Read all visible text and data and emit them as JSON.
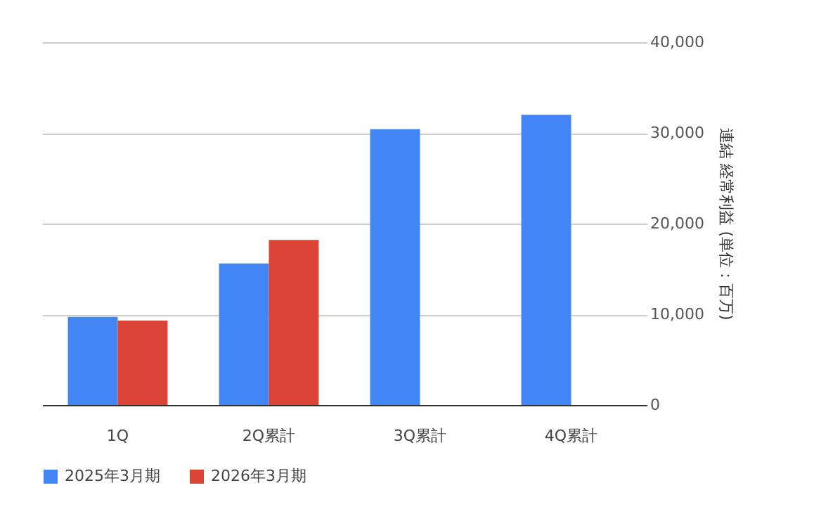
{
  "chart_data": {
    "type": "bar",
    "ylabel": "連結 経常利益 (単位：百万)",
    "categories": [
      "1Q",
      "2Q累計",
      "3Q累計",
      "4Q累計"
    ],
    "series": [
      {
        "name": "2025年3月期",
        "color": "#4285f4",
        "values": [
          9700,
          15600,
          30400,
          32000
        ]
      },
      {
        "name": "2026年3月期",
        "color": "#db4437",
        "values": [
          9300,
          18200,
          null,
          null
        ]
      }
    ],
    "ylim": [
      0,
      40000
    ],
    "yticks": [
      0,
      {
        "value": 10000,
        "label": "10,000"
      },
      {
        "value": 20000,
        "label": "20,000"
      },
      {
        "value": 30000,
        "label": "30,000"
      },
      {
        "value": 40000,
        "label": "40,000"
      }
    ],
    "grid": "y",
    "legend": "bottom"
  }
}
